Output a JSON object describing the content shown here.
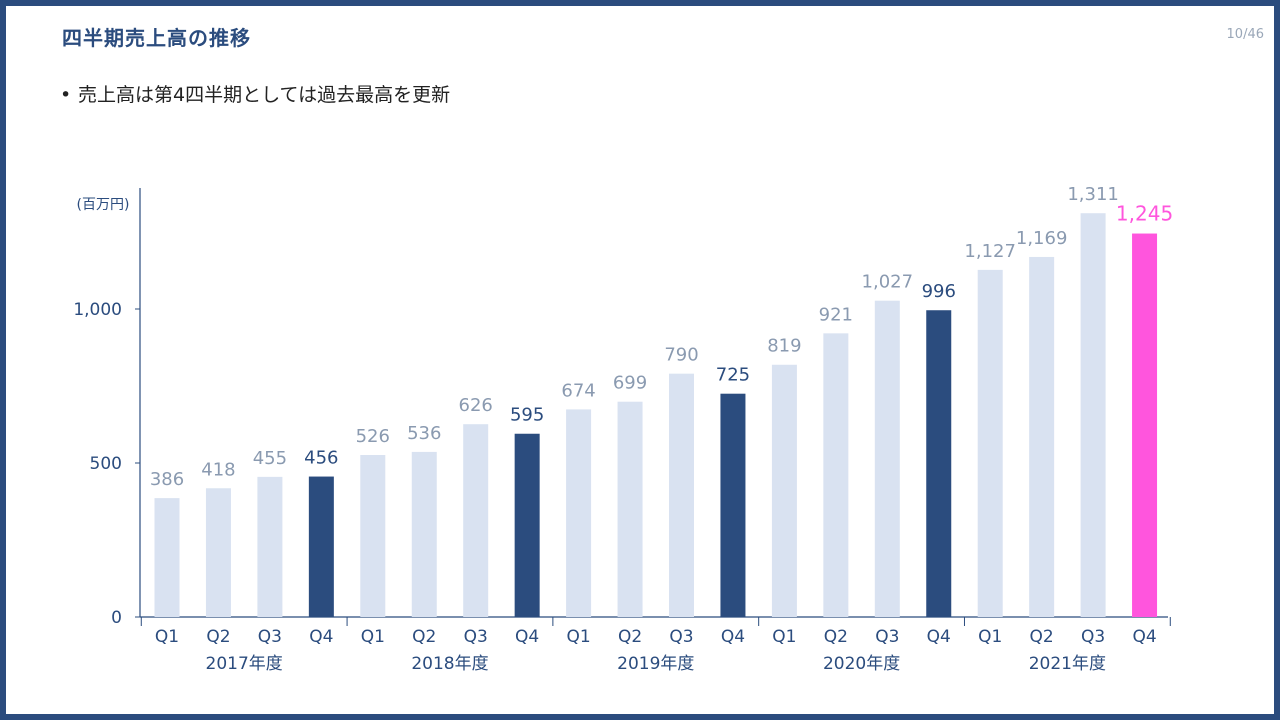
{
  "header": {
    "title": "四半期売上高の推移",
    "page_number": "10/46"
  },
  "bullets": [
    "売上高は第4四半期としては過去最高を更新"
  ],
  "colors": {
    "frame": "#2b4c7e",
    "bar_normal": "#d9e2f1",
    "bar_q4": "#2b4c7e",
    "bar_highlight": "#ff55dd",
    "label_normal": "#8a9ab0",
    "label_q4": "#2b4c7e",
    "label_highlight": "#ff55dd"
  },
  "chart_data": {
    "type": "bar",
    "unit_label": "(百万円)",
    "ylim": [
      0,
      1400
    ],
    "yticks": [
      0,
      500,
      1000
    ],
    "ytick_labels": [
      "0",
      "500",
      "1,000"
    ],
    "grid": false,
    "categories": [
      "Q1",
      "Q2",
      "Q3",
      "Q4",
      "Q1",
      "Q2",
      "Q3",
      "Q4",
      "Q1",
      "Q2",
      "Q3",
      "Q4",
      "Q1",
      "Q2",
      "Q3",
      "Q4",
      "Q1",
      "Q2",
      "Q3",
      "Q4"
    ],
    "groups": [
      "2017年度",
      "2018年度",
      "2019年度",
      "2020年度",
      "2021年度"
    ],
    "values": [
      386,
      418,
      455,
      456,
      526,
      536,
      626,
      595,
      674,
      699,
      790,
      725,
      819,
      921,
      1027,
      996,
      1127,
      1169,
      1311,
      1245
    ],
    "value_labels": [
      "386",
      "418",
      "455",
      "456",
      "526",
      "536",
      "626",
      "595",
      "674",
      "699",
      "790",
      "725",
      "819",
      "921",
      "1,027",
      "996",
      "1,127",
      "1,169",
      "1,311",
      "1,245"
    ],
    "styles": [
      "normal",
      "normal",
      "normal",
      "q4",
      "normal",
      "normal",
      "normal",
      "q4",
      "normal",
      "normal",
      "normal",
      "q4",
      "normal",
      "normal",
      "normal",
      "q4",
      "normal",
      "normal",
      "normal",
      "highlight"
    ]
  }
}
